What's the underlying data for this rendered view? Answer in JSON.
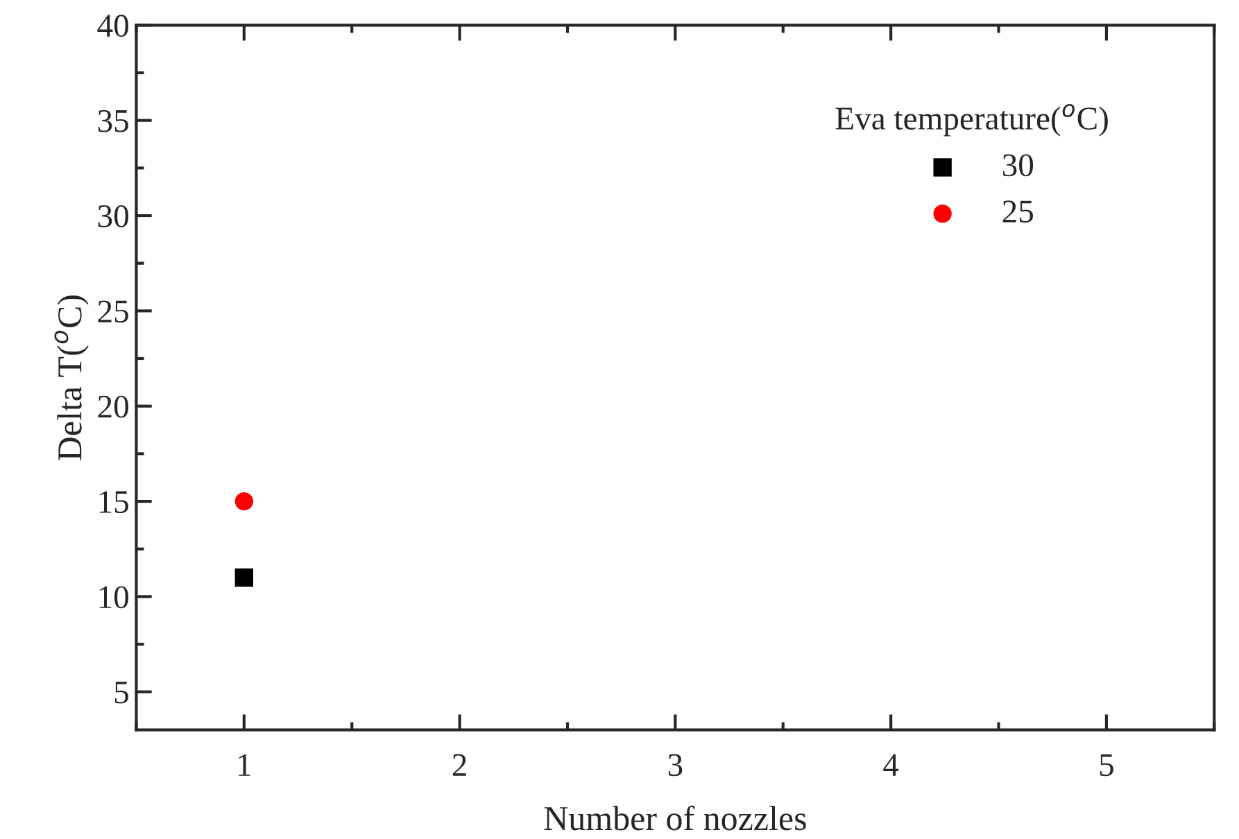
{
  "chart_data": {
    "type": "scatter",
    "xlabel": "Number of nozzles",
    "ylabel": "Delta T($^{o}$C)",
    "legend_title": "Eva temperature($^{o}$C)",
    "x": [
      1
    ],
    "series": [
      {
        "name": "30",
        "color": "#000000",
        "marker": "square",
        "values": [
          11
        ]
      },
      {
        "name": "25",
        "color": "#ff0000",
        "marker": "circle",
        "values": [
          15
        ]
      }
    ],
    "xlim": [
      0.5,
      5.5
    ],
    "xticks": [
      1,
      2,
      3,
      4,
      5
    ],
    "ylim": [
      3,
      40
    ],
    "yticks": [
      5,
      10,
      15,
      20,
      25,
      30,
      35,
      40
    ],
    "grid": false,
    "legend": "top right"
  }
}
